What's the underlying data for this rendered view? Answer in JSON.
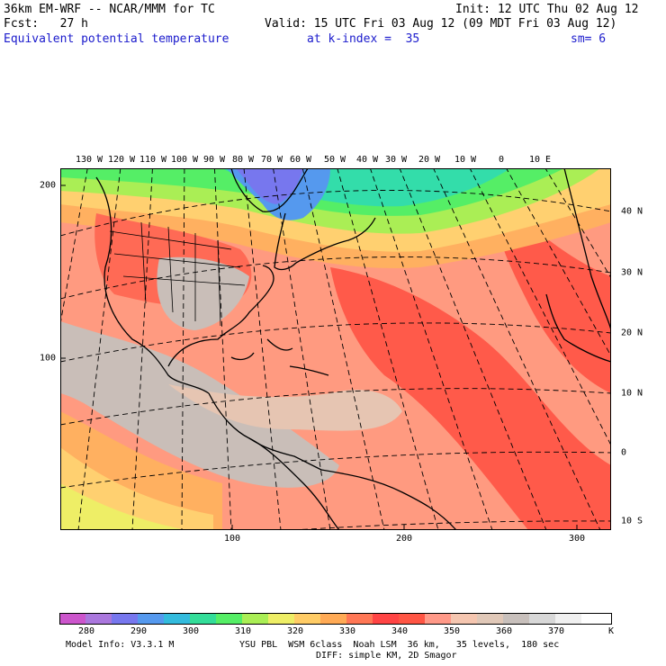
{
  "header": {
    "title": "36km EM-WRF -- NCAR/MMM for TC",
    "init": "Init: 12 UTC Thu 02 Aug 12",
    "forecast": "Fcst:   27 h",
    "valid": "Valid: 15 UTC Fri 03 Aug 12 (09 MDT Fri 03 Aug 12)",
    "field": "Equivalent potential temperature",
    "level": "at k-index =  35",
    "smoothing": "sm= 6"
  },
  "map": {
    "longitude_labels": [
      "130 W",
      "120 W",
      "110 W",
      "100 W",
      "90 W",
      "80 W",
      "70 W",
      "60 W",
      "50 W",
      "40 W",
      "30 W",
      "20 W",
      "10 W",
      "0",
      "10 E"
    ],
    "latitude_labels": [
      "40 N",
      "30 N",
      "20 N",
      "10 N",
      "0",
      "10 S"
    ],
    "grid_y_labels": [
      "200",
      "100"
    ],
    "grid_x_labels": [
      "100",
      "200",
      "300"
    ]
  },
  "colorbar": {
    "colors": [
      "#cc55cc",
      "#aa77dd",
      "#7777ee",
      "#5599ee",
      "#33bbdd",
      "#33dd99",
      "#55ee66",
      "#aaee55",
      "#eeee66",
      "#ffcc66",
      "#ffaa55",
      "#ff7755",
      "#ff4444",
      "#ff5544",
      "#ff9988",
      "#f5c6b0",
      "#e0c8b8",
      "#c8c0bc",
      "#d8d8d8",
      "#f0f0f0",
      "#ffffff"
    ],
    "labels": [
      "280",
      "290",
      "300",
      "310",
      "320",
      "330",
      "340",
      "350",
      "360",
      "370"
    ],
    "unit": "K"
  },
  "footer": {
    "model": "Model Info: V3.3.1 M",
    "physics": "YSU PBL  WSM 6class  Noah LSM  36 km,   35 levels,  180 sec",
    "diffusion": "DIFF: simple KM, 2D Smagor"
  }
}
